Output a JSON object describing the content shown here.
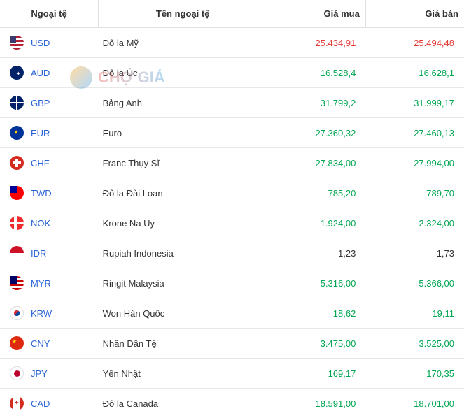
{
  "headers": {
    "currency": "Ngoại tệ",
    "name": "Tên ngoại tệ",
    "buy": "Giá mua",
    "sell": "Giá bán"
  },
  "watermark": "CHỢ GIÁ",
  "rows": [
    {
      "code": "USD",
      "flag": "usd",
      "name": "Đô la Mỹ",
      "buy": "25.434,91",
      "buyColor": "red",
      "sell": "25.494,48",
      "sellColor": "red"
    },
    {
      "code": "AUD",
      "flag": "aud",
      "name": "Đô la Úc",
      "buy": "16.528,4",
      "buyColor": "green",
      "sell": "16.628,1",
      "sellColor": "green"
    },
    {
      "code": "GBP",
      "flag": "gbp",
      "name": "Bảng Anh",
      "buy": "31.799,2",
      "buyColor": "green",
      "sell": "31.999,17",
      "sellColor": "green"
    },
    {
      "code": "EUR",
      "flag": "eur",
      "name": "Euro",
      "buy": "27.360,32",
      "buyColor": "green",
      "sell": "27.460,13",
      "sellColor": "green"
    },
    {
      "code": "CHF",
      "flag": "chf",
      "name": "Franc Thụy Sĩ",
      "buy": "27.834,00",
      "buyColor": "green",
      "sell": "27.994,00",
      "sellColor": "green"
    },
    {
      "code": "TWD",
      "flag": "twd",
      "name": "Đô la Đài Loan",
      "buy": "785,20",
      "buyColor": "green",
      "sell": "789,70",
      "sellColor": "green"
    },
    {
      "code": "NOK",
      "flag": "nok",
      "name": "Krone Na Uy",
      "buy": "1.924,00",
      "buyColor": "green",
      "sell": "2.324,00",
      "sellColor": "green"
    },
    {
      "code": "IDR",
      "flag": "idr",
      "name": "Rupiah Indonesia",
      "buy": "1,23",
      "buyColor": "black",
      "sell": "1,73",
      "sellColor": "black"
    },
    {
      "code": "MYR",
      "flag": "myr",
      "name": "Ringit Malaysia",
      "buy": "5.316,00",
      "buyColor": "green",
      "sell": "5.366,00",
      "sellColor": "green"
    },
    {
      "code": "KRW",
      "flag": "krw",
      "name": "Won Hàn Quốc",
      "buy": "18,62",
      "buyColor": "green",
      "sell": "19,11",
      "sellColor": "green"
    },
    {
      "code": "CNY",
      "flag": "cny",
      "name": "Nhân Dân Tệ",
      "buy": "3.475,00",
      "buyColor": "green",
      "sell": "3.525,00",
      "sellColor": "green"
    },
    {
      "code": "JPY",
      "flag": "jpy",
      "name": "Yên Nhật",
      "buy": "169,17",
      "buyColor": "green",
      "sell": "170,35",
      "sellColor": "green"
    },
    {
      "code": "CAD",
      "flag": "cad",
      "name": "Đô la Canada",
      "buy": "18.591,00",
      "buyColor": "green",
      "sell": "18.701,00",
      "sellColor": "green"
    }
  ]
}
